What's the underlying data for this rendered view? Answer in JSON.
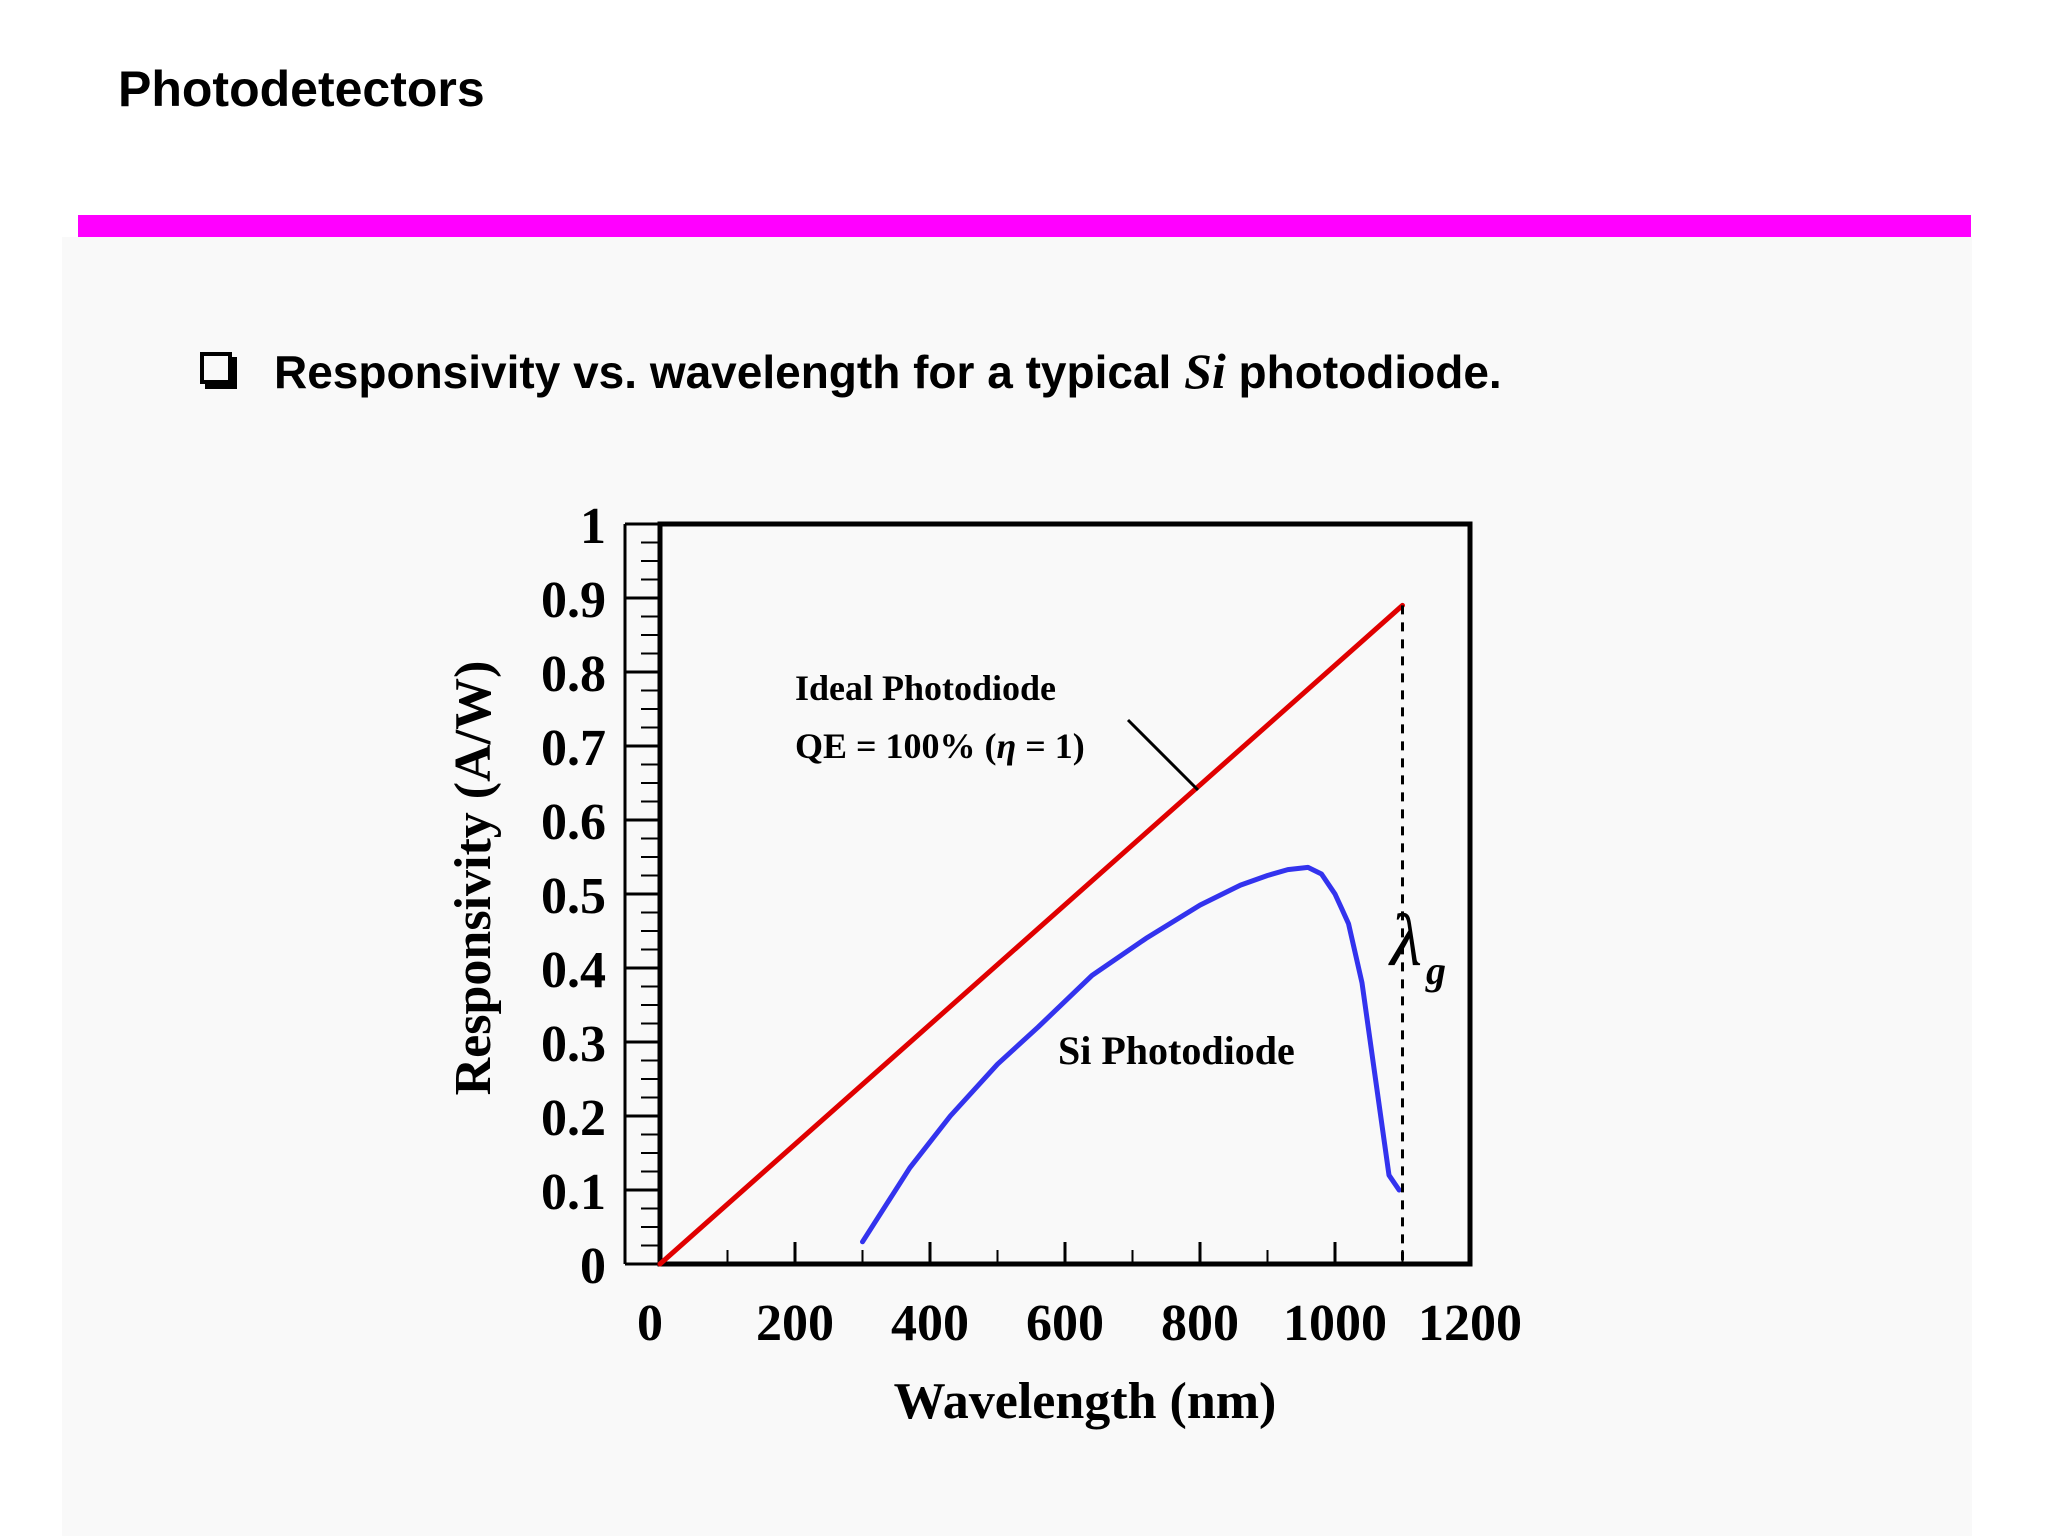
{
  "slide": {
    "title": "Photodetectors",
    "bullet_prefix": "Responsivity vs. wavelength for a typical ",
    "bullet_italic": "Si",
    "bullet_suffix": " photodiode.",
    "accent_color": "#ff00ff"
  },
  "chart_data": {
    "type": "line",
    "xlabel": "Wavelength (nm)",
    "ylabel": "Responsivity (A/W)",
    "xlim": [
      0,
      1200
    ],
    "ylim": [
      0,
      1
    ],
    "x_ticks": [
      0,
      200,
      400,
      600,
      800,
      1000,
      1200
    ],
    "x_tick_labels": [
      "0",
      "200",
      "400",
      "600",
      "800",
      "1000",
      "1200"
    ],
    "y_ticks": [
      0,
      0.1,
      0.2,
      0.3,
      0.4,
      0.5,
      0.6,
      0.7,
      0.8,
      0.9,
      1
    ],
    "y_tick_labels": [
      "0",
      "0.1",
      "0.2",
      "0.3",
      "0.4",
      "0.5",
      "0.6",
      "0.7",
      "0.8",
      "0.9",
      "1"
    ],
    "series": [
      {
        "name": "Ideal Photodiode",
        "color": "#e00000",
        "x": [
          0,
          1100
        ],
        "y": [
          0,
          0.89
        ]
      },
      {
        "name": "Si Photodiode",
        "color": "#3333ee",
        "x": [
          300,
          370,
          430,
          500,
          560,
          640,
          720,
          800,
          860,
          900,
          930,
          960,
          980,
          1000,
          1010,
          1020,
          1040,
          1060,
          1080,
          1095
        ],
        "y": [
          0.03,
          0.13,
          0.2,
          0.27,
          0.32,
          0.39,
          0.44,
          0.485,
          0.512,
          0.525,
          0.533,
          0.536,
          0.527,
          0.5,
          0.48,
          0.46,
          0.38,
          0.25,
          0.12,
          0.1
        ]
      }
    ],
    "annotations": {
      "ideal_line1": "Ideal Photodiode",
      "ideal_line2_prefix": "QE = 100% (",
      "ideal_eta": "η",
      "ideal_line2_suffix": " = 1)",
      "si_label": "Si Photodiode",
      "cutoff_symbol": "λ",
      "cutoff_subscript": "g",
      "cutoff_wavelength": 1100
    },
    "grid": false
  }
}
